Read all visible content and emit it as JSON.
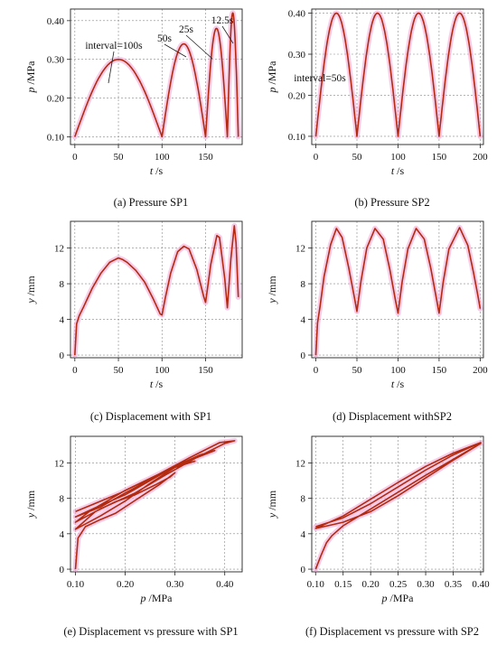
{
  "chart_data": [
    {
      "panel": "a",
      "type": "line",
      "caption": "(a) Pressure SP1",
      "xlabel_var": "t",
      "xlabel_unit": " /s",
      "ylabel_var": "p",
      "ylabel_unit": " /MPa",
      "xlim": [
        -5,
        192
      ],
      "ylim": [
        0.08,
        0.43
      ],
      "xticks": [
        0,
        50,
        100,
        150
      ],
      "yticks": [
        0.1,
        0.2,
        0.3,
        0.4
      ],
      "ytick_labels": [
        "0.10",
        "0.20",
        "0.30",
        "0.40"
      ],
      "segments": [
        {
          "t0": 0,
          "t1": 100,
          "peak": 0.3
        },
        {
          "t0": 100,
          "t1": 150,
          "peak": 0.34
        },
        {
          "t0": 150,
          "t1": 175,
          "peak": 0.38
        },
        {
          "t0": 175,
          "t1": 187.5,
          "peak": 0.42
        }
      ],
      "base": 0.1,
      "annotations": [
        "interval=100s",
        "50s",
        "25s",
        "12.5s"
      ],
      "colors": {
        "line": "#b22a0f",
        "band": "#f2a3d6"
      }
    },
    {
      "panel": "b",
      "type": "line",
      "caption": "(b) Pressure SP2",
      "xlabel_var": "t",
      "xlabel_unit": " /s",
      "ylabel_var": "p",
      "ylabel_unit": " /MPa",
      "xlim": [
        -5,
        204
      ],
      "ylim": [
        0.08,
        0.41
      ],
      "xticks": [
        0,
        50,
        100,
        150,
        200
      ],
      "yticks": [
        0.1,
        0.2,
        0.3,
        0.4
      ],
      "ytick_labels": [
        "0.10",
        "0.20",
        "0.30",
        "0.40"
      ],
      "segments": [
        {
          "t0": 0,
          "t1": 50,
          "peak": 0.4
        },
        {
          "t0": 50,
          "t1": 100,
          "peak": 0.4
        },
        {
          "t0": 100,
          "t1": 150,
          "peak": 0.4
        },
        {
          "t0": 150,
          "t1": 200,
          "peak": 0.4
        }
      ],
      "base": 0.1,
      "annotations": [
        "interval=50s"
      ],
      "colors": {
        "line": "#b22a0f",
        "band": "#f2a3d6"
      }
    },
    {
      "panel": "c",
      "type": "line",
      "caption": "(c) Displacement with SP1",
      "xlabel_var": "t",
      "xlabel_unit": " /s",
      "ylabel_var": "y",
      "ylabel_unit": " /mm",
      "xlim": [
        -5,
        192
      ],
      "ylim": [
        -0.3,
        15
      ],
      "xticks": [
        0,
        50,
        100,
        150
      ],
      "yticks": [
        0,
        4,
        8,
        12
      ],
      "ytick_labels": [
        "0",
        "4",
        "8",
        "12"
      ],
      "points": [
        [
          0,
          0
        ],
        [
          2,
          3.5
        ],
        [
          5,
          4.4
        ],
        [
          10,
          5.4
        ],
        [
          20,
          7.5
        ],
        [
          30,
          9.2
        ],
        [
          40,
          10.4
        ],
        [
          50,
          10.9
        ],
        [
          55,
          10.7
        ],
        [
          60,
          10.4
        ],
        [
          70,
          9.5
        ],
        [
          80,
          8.2
        ],
        [
          90,
          6.3
        ],
        [
          98,
          4.6
        ],
        [
          100,
          4.5
        ],
        [
          104,
          6.5
        ],
        [
          110,
          9.2
        ],
        [
          118,
          11.6
        ],
        [
          125,
          12.2
        ],
        [
          131,
          11.9
        ],
        [
          140,
          9.6
        ],
        [
          148,
          6.5
        ],
        [
          150,
          5.9
        ],
        [
          156,
          10.2
        ],
        [
          163,
          13.4
        ],
        [
          166,
          13.2
        ],
        [
          172,
          8.6
        ],
        [
          175,
          5.3
        ],
        [
          179,
          10.8
        ],
        [
          183,
          14.5
        ],
        [
          185,
          12.6
        ],
        [
          187.5,
          6.5
        ]
      ],
      "colors": {
        "line": "#b22a0f",
        "band": "#f2a3d6"
      }
    },
    {
      "panel": "d",
      "type": "line",
      "caption": "(d) Displacement withSP2",
      "xlabel_var": "t",
      "xlabel_unit": " /s",
      "ylabel_var": "y",
      "ylabel_unit": " /mm",
      "xlim": [
        -5,
        204
      ],
      "ylim": [
        -0.3,
        15
      ],
      "xticks": [
        0,
        50,
        100,
        150,
        200
      ],
      "yticks": [
        0,
        4,
        8,
        12
      ],
      "ytick_labels": [
        "0",
        "4",
        "8",
        "12"
      ],
      "points": [
        [
          0,
          0
        ],
        [
          2,
          3.6
        ],
        [
          5,
          5.4
        ],
        [
          10,
          8.8
        ],
        [
          18,
          12.4
        ],
        [
          25,
          14.2
        ],
        [
          32,
          13.2
        ],
        [
          40,
          9.8
        ],
        [
          47,
          6.4
        ],
        [
          50,
          4.9
        ],
        [
          55,
          8.3
        ],
        [
          62,
          12.0
        ],
        [
          72,
          14.2
        ],
        [
          82,
          13.0
        ],
        [
          90,
          9.6
        ],
        [
          97,
          6.1
        ],
        [
          100,
          4.7
        ],
        [
          105,
          8.2
        ],
        [
          112,
          11.9
        ],
        [
          122,
          14.2
        ],
        [
          132,
          13.0
        ],
        [
          140,
          9.7
        ],
        [
          147,
          6.2
        ],
        [
          150,
          4.7
        ],
        [
          155,
          8.2
        ],
        [
          162,
          11.9
        ],
        [
          175,
          14.3
        ],
        [
          185,
          12.3
        ],
        [
          192,
          9.2
        ],
        [
          197,
          6.8
        ],
        [
          200,
          5.2
        ]
      ],
      "colors": {
        "line": "#b22a0f",
        "band": "#f2a3d6"
      }
    },
    {
      "panel": "e",
      "type": "line",
      "caption": "(e) Displacement vs pressure with SP1",
      "xlabel_var": "p",
      "xlabel_unit": " /MPa",
      "ylabel_var": "y",
      "ylabel_unit": " /mm",
      "xlim": [
        0.09,
        0.435
      ],
      "ylim": [
        -0.3,
        15
      ],
      "xticks": [
        0.1,
        0.2,
        0.3,
        0.4
      ],
      "yticks": [
        0,
        4,
        8,
        12
      ],
      "xtick_labels": [
        "0.10",
        "0.20",
        "0.30",
        "0.40"
      ],
      "ytick_labels": [
        "0",
        "4",
        "8",
        "12"
      ],
      "points": [
        [
          0.1,
          0
        ],
        [
          0.105,
          3.5
        ],
        [
          0.12,
          4.8
        ],
        [
          0.15,
          5.6
        ],
        [
          0.18,
          6.3
        ],
        [
          0.21,
          7.4
        ],
        [
          0.24,
          8.5
        ],
        [
          0.27,
          9.6
        ],
        [
          0.3,
          10.9
        ],
        [
          0.29,
          10.4
        ],
        [
          0.26,
          9.5
        ],
        [
          0.22,
          8.4
        ],
        [
          0.18,
          7.6
        ],
        [
          0.14,
          6.5
        ],
        [
          0.1,
          4.5
        ],
        [
          0.15,
          6.0
        ],
        [
          0.2,
          7.7
        ],
        [
          0.25,
          9.7
        ],
        [
          0.3,
          11.5
        ],
        [
          0.34,
          12.2
        ],
        [
          0.3,
          11.6
        ],
        [
          0.25,
          10.1
        ],
        [
          0.2,
          8.6
        ],
        [
          0.15,
          7.0
        ],
        [
          0.1,
          5.9
        ],
        [
          0.15,
          7.2
        ],
        [
          0.2,
          8.4
        ],
        [
          0.25,
          10.0
        ],
        [
          0.3,
          11.6
        ],
        [
          0.35,
          12.9
        ],
        [
          0.38,
          13.4
        ],
        [
          0.33,
          12.3
        ],
        [
          0.27,
          10.8
        ],
        [
          0.2,
          8.9
        ],
        [
          0.13,
          6.6
        ],
        [
          0.1,
          5.3
        ],
        [
          0.15,
          6.8
        ],
        [
          0.22,
          8.6
        ],
        [
          0.28,
          10.6
        ],
        [
          0.34,
          12.5
        ],
        [
          0.4,
          14.2
        ],
        [
          0.42,
          14.5
        ],
        [
          0.39,
          14.3
        ],
        [
          0.33,
          12.6
        ],
        [
          0.26,
          10.5
        ],
        [
          0.19,
          8.6
        ],
        [
          0.13,
          7.2
        ],
        [
          0.1,
          6.5
        ]
      ],
      "colors": {
        "line": "#b22a0f",
        "band": "#f2a3d6"
      }
    },
    {
      "panel": "f",
      "type": "line",
      "caption": "(f) Displacement vs pressure with SP2",
      "xlabel_var": "p",
      "xlabel_unit": " /MPa",
      "ylabel_var": "y",
      "ylabel_unit": " /mm",
      "xlim": [
        0.093,
        0.405
      ],
      "ylim": [
        -0.3,
        15
      ],
      "xticks": [
        0.1,
        0.15,
        0.2,
        0.25,
        0.3,
        0.35,
        0.4
      ],
      "yticks": [
        0,
        4,
        8,
        12
      ],
      "xtick_labels": [
        "0.10",
        "0.15",
        "0.20",
        "0.25",
        "0.30",
        "0.35",
        "0.40"
      ],
      "ytick_labels": [
        "0",
        "4",
        "8",
        "12"
      ],
      "points": [
        [
          0.1,
          0
        ],
        [
          0.11,
          1.6
        ],
        [
          0.12,
          3.0
        ],
        [
          0.13,
          3.8
        ],
        [
          0.15,
          4.9
        ],
        [
          0.2,
          6.8
        ],
        [
          0.25,
          8.7
        ],
        [
          0.3,
          10.6
        ],
        [
          0.35,
          12.4
        ],
        [
          0.4,
          14.2
        ],
        [
          0.35,
          12.3
        ],
        [
          0.3,
          10.3
        ],
        [
          0.25,
          8.3
        ],
        [
          0.2,
          6.5
        ],
        [
          0.15,
          5.3
        ],
        [
          0.1,
          4.6
        ],
        [
          0.15,
          6.0
        ],
        [
          0.2,
          7.9
        ],
        [
          0.25,
          9.8
        ],
        [
          0.3,
          11.6
        ],
        [
          0.35,
          13.1
        ],
        [
          0.4,
          14.3
        ],
        [
          0.35,
          12.9
        ],
        [
          0.3,
          11.2
        ],
        [
          0.25,
          9.3
        ],
        [
          0.2,
          7.4
        ],
        [
          0.15,
          5.8
        ],
        [
          0.1,
          4.8
        ]
      ],
      "colors": {
        "line": "#b22a0f",
        "band": "#f2a3d6"
      }
    }
  ]
}
